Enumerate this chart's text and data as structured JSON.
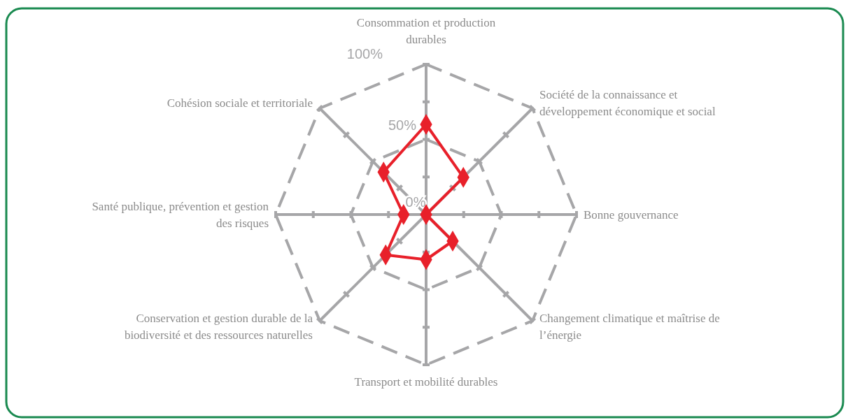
{
  "chart_data": {
    "type": "radar",
    "categories": [
      "Consommation et production durables",
      "Société de la connaissance et développement économique et social",
      "Bonne gouvernance",
      "Changement climatique et maîtrise de l’énergie",
      "Transport et mobilité durables",
      "Conservation et gestion durable de la biodiversité et des ressources naturelles",
      "Santé publique, prévention et gestion des risques",
      "Cohésion sociale et territoriale"
    ],
    "series": [
      {
        "color": "#e8202a",
        "values": [
          60,
          35,
          0,
          25,
          30,
          38,
          15,
          40
        ]
      }
    ],
    "ylim": [
      0,
      100
    ],
    "yticks": [
      {
        "value": 0,
        "label": "0%"
      },
      {
        "value": 50,
        "label": "50%"
      },
      {
        "value": 100,
        "label": "100%"
      }
    ],
    "grid": true,
    "marker": "diamond",
    "line_style": "solid"
  }
}
